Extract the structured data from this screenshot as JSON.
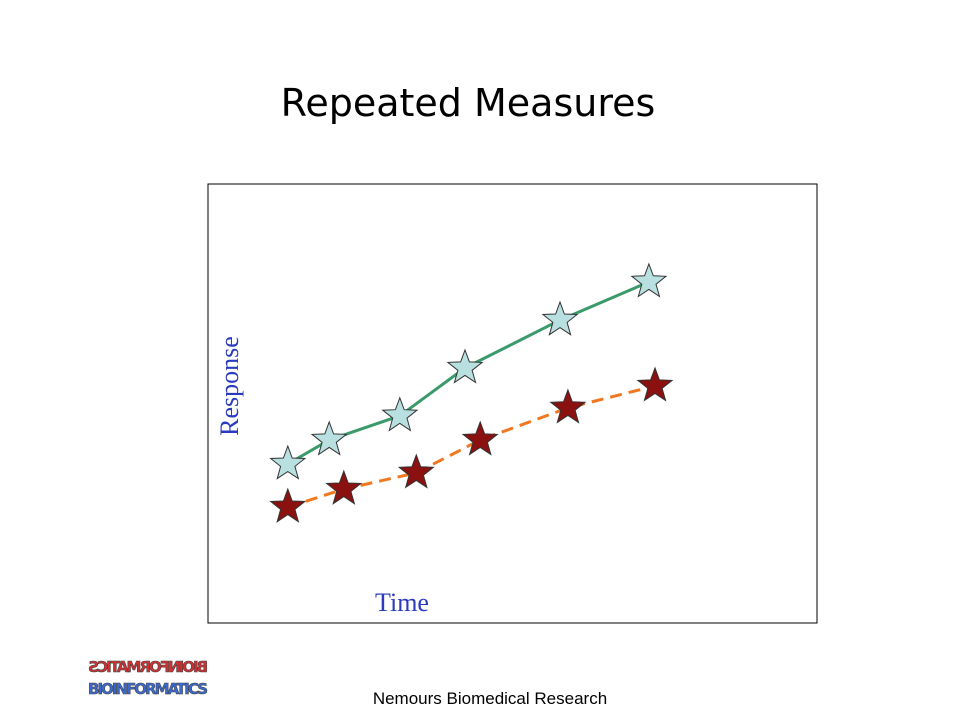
{
  "chart_data": {
    "type": "line",
    "title": "Repeated Measures",
    "xlabel": "Time",
    "ylabel": "Response",
    "xlim": [
      0,
      100
    ],
    "ylim": [
      0,
      100
    ],
    "series": [
      {
        "x": [
          13.1,
          19.9,
          31.5,
          42.2,
          57.8,
          72.4
        ],
        "values": [
          36.2,
          41.7,
          47.2,
          58.1,
          69.0,
          77.7
        ],
        "color": "#3a9a6a",
        "marker_color": "#b9e0e0",
        "dashed": false
      },
      {
        "x": [
          13.1,
          22.3,
          34.2,
          44.7,
          59.1,
          73.4
        ],
        "values": [
          26.4,
          30.5,
          34.2,
          41.7,
          49.0,
          54.0
        ],
        "color": "#f07820",
        "marker_color": "#8b1010",
        "dashed": true
      }
    ]
  },
  "footer": "Nemours Biomedical Research",
  "logo": "BIOINFORMATICS"
}
